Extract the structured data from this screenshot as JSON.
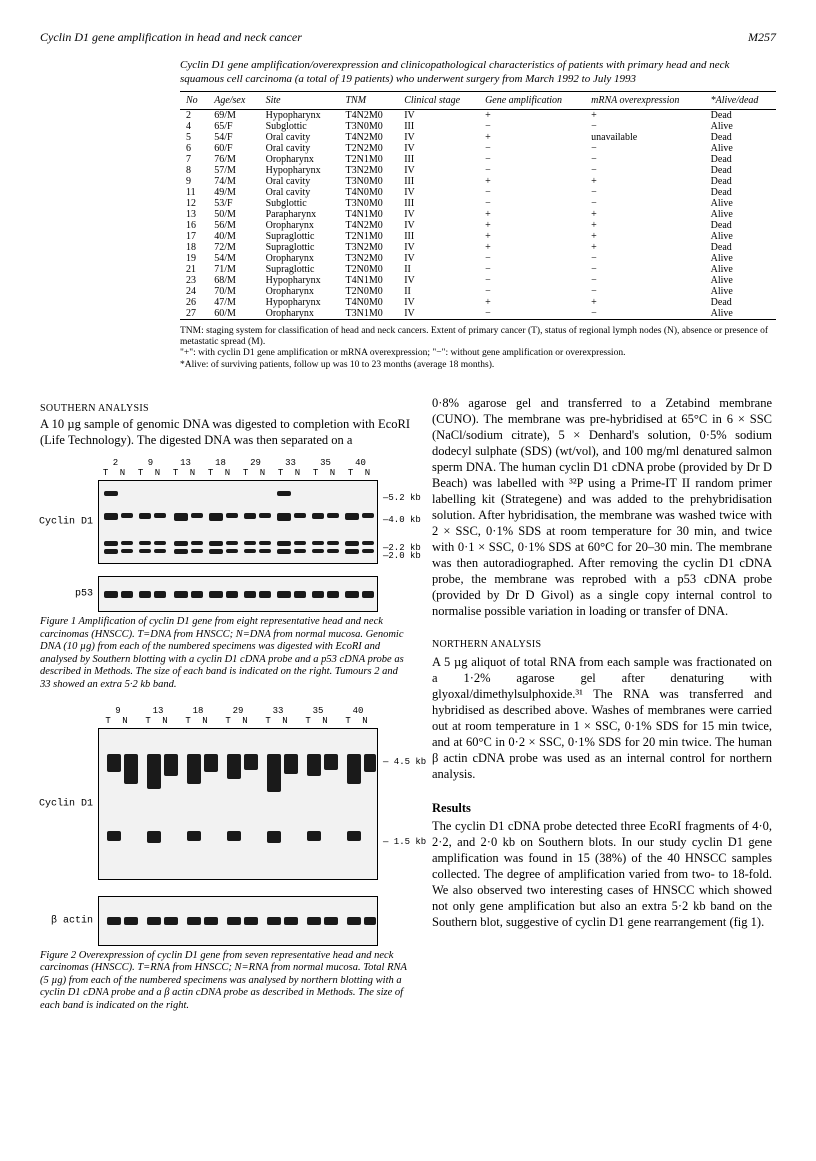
{
  "header": {
    "running_title": "Cyclin D1 gene amplification in head and neck cancer",
    "page_number": "M257"
  },
  "table": {
    "caption": "Cyclin D1 gene amplification/overexpression and clinicopathological characteristics of patients with primary head and neck squamous cell carcinoma (a total of 19 patients) who underwent surgery from March 1992 to July 1993",
    "columns": [
      "No",
      "Age/sex",
      "Site",
      "TNM",
      "Clinical stage",
      "Gene amplification",
      "mRNA overexpression",
      "*Alive/dead"
    ],
    "rows": [
      [
        "2",
        "69/M",
        "Hypopharynx",
        "T4N2M0",
        "IV",
        "+",
        "+",
        "Dead"
      ],
      [
        "4",
        "65/F",
        "Subglottic",
        "T3N0M0",
        "III",
        "−",
        "−",
        "Alive"
      ],
      [
        "5",
        "54/F",
        "Oral cavity",
        "T4N2M0",
        "IV",
        "+",
        "unavailable",
        "Dead"
      ],
      [
        "6",
        "60/F",
        "Oral cavity",
        "T2N2M0",
        "IV",
        "−",
        "−",
        "Alive"
      ],
      [
        "7",
        "76/M",
        "Oropharynx",
        "T2N1M0",
        "III",
        "−",
        "−",
        "Dead"
      ],
      [
        "8",
        "57/M",
        "Hypopharynx",
        "T3N2M0",
        "IV",
        "−",
        "−",
        "Dead"
      ],
      [
        "9",
        "74/M",
        "Oral cavity",
        "T3N0M0",
        "III",
        "+",
        "+",
        "Dead"
      ],
      [
        "11",
        "49/M",
        "Oral cavity",
        "T4N0M0",
        "IV",
        "−",
        "−",
        "Dead"
      ],
      [
        "12",
        "53/F",
        "Subglottic",
        "T3N0M0",
        "III",
        "−",
        "−",
        "Alive"
      ],
      [
        "13",
        "50/M",
        "Parapharynx",
        "T4N1M0",
        "IV",
        "+",
        "+",
        "Alive"
      ],
      [
        "16",
        "56/M",
        "Oropharynx",
        "T4N2M0",
        "IV",
        "+",
        "+",
        "Dead"
      ],
      [
        "17",
        "40/M",
        "Supraglottic",
        "T2N1M0",
        "III",
        "+",
        "+",
        "Alive"
      ],
      [
        "18",
        "72/M",
        "Supraglottic",
        "T3N2M0",
        "IV",
        "+",
        "+",
        "Dead"
      ],
      [
        "19",
        "54/M",
        "Oropharynx",
        "T3N2M0",
        "IV",
        "−",
        "−",
        "Alive"
      ],
      [
        "21",
        "71/M",
        "Supraglottic",
        "T2N0M0",
        "II",
        "−",
        "−",
        "Alive"
      ],
      [
        "23",
        "68/M",
        "Hypopharynx",
        "T4N1M0",
        "IV",
        "−",
        "−",
        "Alive"
      ],
      [
        "24",
        "70/M",
        "Oropharynx",
        "T2N0M0",
        "II",
        "−",
        "−",
        "Alive"
      ],
      [
        "26",
        "47/M",
        "Hypopharynx",
        "T4N0M0",
        "IV",
        "+",
        "+",
        "Dead"
      ],
      [
        "27",
        "60/M",
        "Oropharynx",
        "T3N1M0",
        "IV",
        "−",
        "−",
        "Alive"
      ]
    ],
    "footnotes": [
      "TNM: staging system for classification of head and neck cancers. Extent of primary cancer (T), status of regional lymph nodes (N), absence or presence of metastatic spread (M).",
      "\"+\": with cyclin D1 gene amplification or mRNA overexpression; \"−\": without gene amplification or overexpression.",
      "*Alive: of surviving patients, follow up was 10 to 23 months (average 18 months)."
    ]
  },
  "sections": {
    "southern_title": "SOUTHERN ANALYSIS",
    "southern_text": "A 10 µg sample of genomic DNA was digested to completion with EcoRI (Life Technology). The digested DNA was then separated on a",
    "right_para": "0·8% agarose gel and transferred to a Zetabind membrane (CUNO). The membrane was pre-hybridised at 65°C in 6 × SSC (NaCl/sodium citrate), 5 × Denhard's solution, 0·5% sodium dodecyl sulphate (SDS) (wt/vol), and 100 mg/ml denatured salmon sperm DNA. The human cyclin D1 cDNA probe (provided by Dr D Beach) was labelled with ³²P using a Prime-IT II random primer labelling kit (Strategene) and was added to the prehybridisation solution. After hybridisation, the membrane was washed twice with 2 × SSC, 0·1% SDS at room temperature for 30 min, and twice with 0·1 × SSC, 0·1% SDS at 60°C for 20–30 min. The membrane was then autoradiographed. After removing the cyclin D1 cDNA probe, the membrane was reprobed with a p53 cDNA probe (provided by Dr D Givol) as a single copy internal control to normalise possible variation in loading or transfer of DNA.",
    "northern_title": "NORTHERN ANALYSIS",
    "northern_text": "A 5 µg aliquot of total RNA from each sample was fractionated on a 1·2% agarose gel after denaturing with glyoxal/dimethylsulphoxide.³¹ The RNA was transferred and hybridised as described above. Washes of membranes were carried out at room temperature in 1 × SSC, 0·1% SDS for 15 min twice, and at 60°C in 0·2 × SSC, 0·1% SDS for 20 min twice. The human β actin cDNA probe was used as an internal control for northern analysis.",
    "results_title": "Results",
    "results_text": "The cyclin D1 cDNA probe detected three EcoRI fragments of 4·0, 2·2, and 2·0 kb on Southern blots. In our study cyclin D1 gene amplification was found in 15 (38%) of the 40 HNSCC samples collected. The degree of amplification varied from two- to 18-fold. We also observed two interesting cases of HNSCC which showed not only gene amplification but also an extra 5·2 kb band on the Southern blot, suggestive of cyclin D1 gene rearrangement (fig 1)."
  },
  "figure1": {
    "lane_numbers": [
      "2",
      "9",
      "13",
      "18",
      "29",
      "33",
      "35",
      "40"
    ],
    "lane_tn": "T  N",
    "panel1_label": "Cyclin D1",
    "panel2_label": "p53",
    "size_markers": [
      "5.2 kb",
      "4.0 kb",
      "2.2 kb",
      "2.0 kb"
    ],
    "size_marker_tops": [
      12,
      34,
      62,
      70
    ],
    "caption": "Figure 1   Amplification of cyclin D1 gene from eight representative head and neck carcinomas (HNSCC). T=DNA from HNSCC; N=DNA from normal mucosa. Genomic DNA (10 µg) from each of the numbered specimens was digested with EcoRI and analysed by Southern blotting with a cyclin D1 cDNA probe and a p53 cDNA probe as described in Methods. The size of each band is indicated on the right. Tumours 2 and 33 showed an extra 5·2 kb band.",
    "panel1_bands": [
      {
        "l": 5,
        "t": 10,
        "w": 14,
        "h": 5
      },
      {
        "l": 5,
        "t": 32,
        "w": 14,
        "h": 7
      },
      {
        "l": 5,
        "t": 60,
        "w": 14,
        "h": 5
      },
      {
        "l": 5,
        "t": 68,
        "w": 14,
        "h": 5
      },
      {
        "l": 22,
        "t": 32,
        "w": 12,
        "h": 5
      },
      {
        "l": 22,
        "t": 60,
        "w": 12,
        "h": 4
      },
      {
        "l": 22,
        "t": 68,
        "w": 12,
        "h": 4
      },
      {
        "l": 40,
        "t": 32,
        "w": 12,
        "h": 6
      },
      {
        "l": 40,
        "t": 60,
        "w": 12,
        "h": 4
      },
      {
        "l": 40,
        "t": 68,
        "w": 12,
        "h": 4
      },
      {
        "l": 55,
        "t": 32,
        "w": 12,
        "h": 5
      },
      {
        "l": 55,
        "t": 60,
        "w": 12,
        "h": 4
      },
      {
        "l": 55,
        "t": 68,
        "w": 12,
        "h": 4
      },
      {
        "l": 75,
        "t": 32,
        "w": 14,
        "h": 8
      },
      {
        "l": 75,
        "t": 60,
        "w": 14,
        "h": 5
      },
      {
        "l": 75,
        "t": 68,
        "w": 14,
        "h": 5
      },
      {
        "l": 92,
        "t": 32,
        "w": 12,
        "h": 5
      },
      {
        "l": 92,
        "t": 60,
        "w": 12,
        "h": 4
      },
      {
        "l": 92,
        "t": 68,
        "w": 12,
        "h": 4
      },
      {
        "l": 110,
        "t": 32,
        "w": 14,
        "h": 8
      },
      {
        "l": 110,
        "t": 60,
        "w": 14,
        "h": 5
      },
      {
        "l": 110,
        "t": 68,
        "w": 14,
        "h": 5
      },
      {
        "l": 127,
        "t": 32,
        "w": 12,
        "h": 5
      },
      {
        "l": 127,
        "t": 60,
        "w": 12,
        "h": 4
      },
      {
        "l": 127,
        "t": 68,
        "w": 12,
        "h": 4
      },
      {
        "l": 145,
        "t": 32,
        "w": 12,
        "h": 6
      },
      {
        "l": 145,
        "t": 60,
        "w": 12,
        "h": 4
      },
      {
        "l": 145,
        "t": 68,
        "w": 12,
        "h": 4
      },
      {
        "l": 160,
        "t": 32,
        "w": 12,
        "h": 5
      },
      {
        "l": 160,
        "t": 60,
        "w": 12,
        "h": 4
      },
      {
        "l": 160,
        "t": 68,
        "w": 12,
        "h": 4
      },
      {
        "l": 178,
        "t": 10,
        "w": 14,
        "h": 5
      },
      {
        "l": 178,
        "t": 32,
        "w": 14,
        "h": 8
      },
      {
        "l": 178,
        "t": 60,
        "w": 14,
        "h": 5
      },
      {
        "l": 178,
        "t": 68,
        "w": 14,
        "h": 5
      },
      {
        "l": 195,
        "t": 32,
        "w": 12,
        "h": 5
      },
      {
        "l": 195,
        "t": 60,
        "w": 12,
        "h": 4
      },
      {
        "l": 195,
        "t": 68,
        "w": 12,
        "h": 4
      },
      {
        "l": 213,
        "t": 32,
        "w": 12,
        "h": 6
      },
      {
        "l": 213,
        "t": 60,
        "w": 12,
        "h": 4
      },
      {
        "l": 213,
        "t": 68,
        "w": 12,
        "h": 4
      },
      {
        "l": 228,
        "t": 32,
        "w": 12,
        "h": 5
      },
      {
        "l": 228,
        "t": 60,
        "w": 12,
        "h": 4
      },
      {
        "l": 228,
        "t": 68,
        "w": 12,
        "h": 4
      },
      {
        "l": 246,
        "t": 32,
        "w": 14,
        "h": 7
      },
      {
        "l": 246,
        "t": 60,
        "w": 14,
        "h": 5
      },
      {
        "l": 246,
        "t": 68,
        "w": 14,
        "h": 5
      },
      {
        "l": 263,
        "t": 32,
        "w": 12,
        "h": 5
      },
      {
        "l": 263,
        "t": 60,
        "w": 12,
        "h": 4
      },
      {
        "l": 263,
        "t": 68,
        "w": 12,
        "h": 4
      }
    ],
    "panel2_bands": [
      {
        "l": 5,
        "t": 14,
        "w": 14,
        "h": 7
      },
      {
        "l": 22,
        "t": 14,
        "w": 12,
        "h": 7
      },
      {
        "l": 40,
        "t": 14,
        "w": 12,
        "h": 7
      },
      {
        "l": 55,
        "t": 14,
        "w": 12,
        "h": 7
      },
      {
        "l": 75,
        "t": 14,
        "w": 14,
        "h": 7
      },
      {
        "l": 92,
        "t": 14,
        "w": 12,
        "h": 7
      },
      {
        "l": 110,
        "t": 14,
        "w": 14,
        "h": 7
      },
      {
        "l": 127,
        "t": 14,
        "w": 12,
        "h": 7
      },
      {
        "l": 145,
        "t": 14,
        "w": 12,
        "h": 7
      },
      {
        "l": 160,
        "t": 14,
        "w": 12,
        "h": 7
      },
      {
        "l": 178,
        "t": 14,
        "w": 14,
        "h": 7
      },
      {
        "l": 195,
        "t": 14,
        "w": 12,
        "h": 7
      },
      {
        "l": 213,
        "t": 14,
        "w": 12,
        "h": 7
      },
      {
        "l": 228,
        "t": 14,
        "w": 12,
        "h": 7
      },
      {
        "l": 246,
        "t": 14,
        "w": 14,
        "h": 7
      },
      {
        "l": 263,
        "t": 14,
        "w": 12,
        "h": 7
      }
    ]
  },
  "figure2": {
    "lane_numbers": [
      "9",
      "13",
      "18",
      "29",
      "33",
      "35",
      "40"
    ],
    "panel1_label": "Cyclin D1",
    "panel2_label": "β actin",
    "size_markers": [
      "4.5 kb",
      "1.5 kb"
    ],
    "size_marker_tops": [
      28,
      108
    ],
    "caption": "Figure 2   Overexpression of cyclin D1 gene from seven representative head and neck carcinomas (HNSCC). T=RNA from HNSCC; N=RNA from normal mucosa. Total RNA (5 µg) from each of the numbered specimens was analysed by northern blotting with a cyclin D1 cDNA probe and a β actin cDNA probe as described in Methods. The size of each band is indicated on the right.",
    "panel1_bands": [
      {
        "l": 8,
        "t": 25,
        "w": 14,
        "h": 18
      },
      {
        "l": 25,
        "t": 25,
        "w": 14,
        "h": 30
      },
      {
        "l": 48,
        "t": 25,
        "w": 14,
        "h": 35
      },
      {
        "l": 65,
        "t": 25,
        "w": 14,
        "h": 22
      },
      {
        "l": 88,
        "t": 25,
        "w": 14,
        "h": 30
      },
      {
        "l": 105,
        "t": 25,
        "w": 14,
        "h": 18
      },
      {
        "l": 128,
        "t": 25,
        "w": 14,
        "h": 25
      },
      {
        "l": 145,
        "t": 25,
        "w": 14,
        "h": 16
      },
      {
        "l": 168,
        "t": 25,
        "w": 14,
        "h": 38
      },
      {
        "l": 185,
        "t": 25,
        "w": 14,
        "h": 20
      },
      {
        "l": 208,
        "t": 25,
        "w": 14,
        "h": 22
      },
      {
        "l": 225,
        "t": 25,
        "w": 14,
        "h": 16
      },
      {
        "l": 248,
        "t": 25,
        "w": 14,
        "h": 30
      },
      {
        "l": 265,
        "t": 25,
        "w": 12,
        "h": 18
      },
      {
        "l": 8,
        "t": 102,
        "w": 14,
        "h": 10
      },
      {
        "l": 48,
        "t": 102,
        "w": 14,
        "h": 12
      },
      {
        "l": 88,
        "t": 102,
        "w": 14,
        "h": 10
      },
      {
        "l": 128,
        "t": 102,
        "w": 14,
        "h": 10
      },
      {
        "l": 168,
        "t": 102,
        "w": 14,
        "h": 12
      },
      {
        "l": 208,
        "t": 102,
        "w": 14,
        "h": 10
      },
      {
        "l": 248,
        "t": 102,
        "w": 14,
        "h": 10
      }
    ],
    "panel2_bands": [
      {
        "l": 8,
        "t": 20,
        "w": 14,
        "h": 8
      },
      {
        "l": 25,
        "t": 20,
        "w": 14,
        "h": 8
      },
      {
        "l": 48,
        "t": 20,
        "w": 14,
        "h": 8
      },
      {
        "l": 65,
        "t": 20,
        "w": 14,
        "h": 8
      },
      {
        "l": 88,
        "t": 20,
        "w": 14,
        "h": 8
      },
      {
        "l": 105,
        "t": 20,
        "w": 14,
        "h": 8
      },
      {
        "l": 128,
        "t": 20,
        "w": 14,
        "h": 8
      },
      {
        "l": 145,
        "t": 20,
        "w": 14,
        "h": 8
      },
      {
        "l": 168,
        "t": 20,
        "w": 14,
        "h": 8
      },
      {
        "l": 185,
        "t": 20,
        "w": 14,
        "h": 8
      },
      {
        "l": 208,
        "t": 20,
        "w": 14,
        "h": 8
      },
      {
        "l": 225,
        "t": 20,
        "w": 14,
        "h": 8
      },
      {
        "l": 248,
        "t": 20,
        "w": 14,
        "h": 8
      },
      {
        "l": 265,
        "t": 20,
        "w": 12,
        "h": 8
      }
    ]
  }
}
